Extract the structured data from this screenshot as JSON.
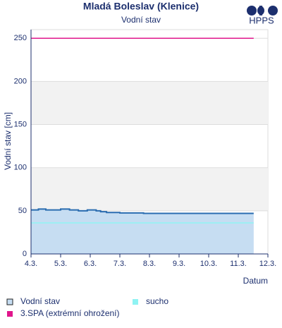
{
  "chart_data": {
    "type": "line",
    "title": "Mladá Boleslav (Klenice)",
    "subtitle": "Vodní stav",
    "logo": "HPPS",
    "y_label": "Vodní stav [cm]",
    "x_label": "Datum",
    "ylim": [
      0,
      260
    ],
    "yticks": [
      0,
      50,
      100,
      150,
      200,
      250
    ],
    "xlim": [
      0,
      8
    ],
    "xticks": [
      {
        "value": 0,
        "label": "4.3."
      },
      {
        "value": 1,
        "label": "5.3."
      },
      {
        "value": 2,
        "label": "6.3."
      },
      {
        "value": 3,
        "label": "7.3."
      },
      {
        "value": 4,
        "label": "8.3."
      },
      {
        "value": 5,
        "label": "9.3."
      },
      {
        "value": 6,
        "label": "10.3."
      },
      {
        "value": 7,
        "label": "11.3."
      },
      {
        "value": 8,
        "label": "12.3."
      }
    ],
    "grid": true,
    "series": [
      {
        "name": "Vodní stav",
        "color": "#2a6cb0",
        "fill": "#c6ddf2",
        "x": [
          0,
          0.25,
          0.25,
          0.5,
          0.5,
          1.0,
          1.0,
          1.3,
          1.3,
          1.6,
          1.6,
          1.9,
          1.9,
          2.2,
          2.2,
          2.35,
          2.35,
          2.55,
          2.55,
          3.0,
          3.0,
          3.8,
          3.8,
          7.52
        ],
        "values": [
          51,
          51,
          52,
          52,
          51,
          51,
          52,
          52,
          51,
          51,
          50,
          50,
          51,
          51,
          50,
          50,
          49,
          49,
          48,
          48,
          47.5,
          47.5,
          47,
          47
        ]
      },
      {
        "name": "sucho",
        "color": "#8ff3f3",
        "x": [
          0,
          7.52
        ],
        "values": [
          36,
          36
        ]
      },
      {
        "name": "3.SPA (extrémní ohrožení)",
        "color": "#e0168c",
        "x": [
          0,
          7.52
        ],
        "values": [
          250,
          250
        ]
      }
    ]
  }
}
